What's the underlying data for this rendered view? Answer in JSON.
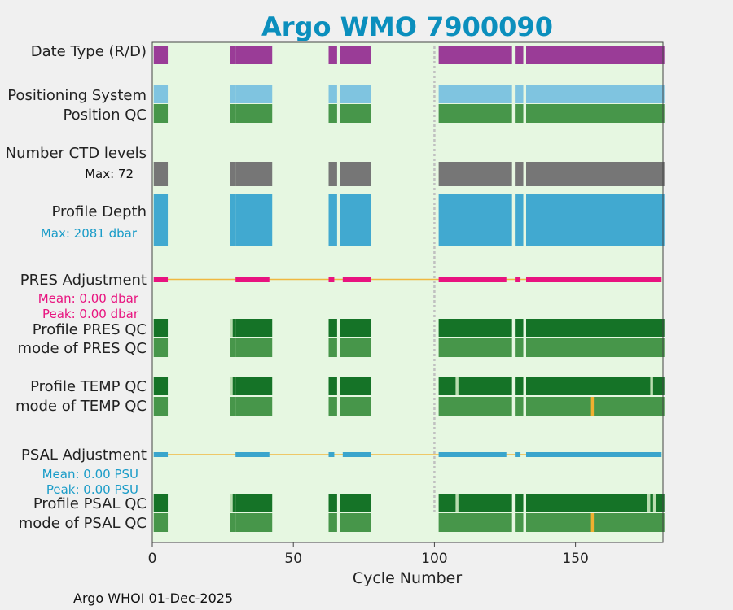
{
  "chart_data": {
    "type": "heatmap",
    "title": "Argo WMO 7900090",
    "xlabel": "Cycle Number",
    "xlim": [
      0,
      181
    ],
    "xticks": [
      0,
      50,
      100,
      150
    ],
    "vline_cycle": 100,
    "footer": "Argo WHOI 01-Dec-2025",
    "colors": {
      "background": "#e6f7e1",
      "datetype": "#9a3c97",
      "positioning": "#7fc4e0",
      "position_qc": "#47964a",
      "ctd": "#767676",
      "depth": "#41a9d0",
      "pres_adj": "#e8137f",
      "psal_adj": "#3aa5cc",
      "adj_line": "#f0b840",
      "qc_dark": "#157327",
      "qc_light": "#47964a",
      "qc_pale": "#b9ddb0",
      "qc_orange": "#f0b030",
      "title": "#0b8fbd",
      "pres_text": "#e8137f",
      "psal_text": "#1a9cc8"
    },
    "labels": {
      "datetype": "Date Type (R/D)",
      "positioning": "Positioning System",
      "position_qc": "Position QC",
      "ctd": "Number CTD levels",
      "ctd_max": "Max: 72",
      "depth": "Profile Depth",
      "depth_max": "Max: 2081 dbar",
      "pres_adj": "PRES Adjustment",
      "pres_mean": "Mean: 0.00 dbar",
      "pres_peak": "Peak: 0.00 dbar",
      "pres_qc": "Profile PRES QC",
      "pres_mode": "mode of PRES QC",
      "temp_qc": "Profile TEMP QC",
      "temp_mode": "mode of TEMP QC",
      "psal_adj": "PSAL Adjustment",
      "psal_mean": "Mean: 0.00 PSU",
      "psal_peak": "Peak: 0.00 PSU",
      "psal_qc": "Profile PSAL QC",
      "psal_mode": "mode of PSAL QC"
    },
    "cycle_ranges": [
      [
        1,
        5
      ],
      [
        28,
        29
      ],
      [
        30,
        42
      ],
      [
        63,
        65
      ],
      [
        67,
        77
      ],
      [
        102,
        127
      ],
      [
        129,
        131
      ],
      [
        133,
        181
      ]
    ],
    "ctd_cycles": [
      [
        1,
        5
      ],
      [
        28,
        29
      ],
      [
        30,
        42
      ],
      [
        63,
        65
      ],
      [
        67,
        77
      ],
      [
        102,
        127
      ],
      [
        129,
        131
      ],
      [
        133,
        181
      ]
    ],
    "pres_adjustment_segments": [
      [
        1,
        5
      ],
      [
        30,
        41
      ],
      [
        63,
        64
      ],
      [
        68,
        77
      ],
      [
        102,
        125
      ],
      [
        129,
        130
      ],
      [
        133,
        180
      ]
    ],
    "psal_adjustment_segments": [
      [
        1,
        5
      ],
      [
        30,
        41
      ],
      [
        63,
        64
      ],
      [
        68,
        77
      ],
      [
        102,
        125
      ],
      [
        129,
        130
      ],
      [
        133,
        180
      ]
    ],
    "pale_qc_cycles": {
      "pres": [
        28
      ],
      "temp": [
        28,
        108,
        177
      ],
      "psal": [
        28,
        108,
        176,
        178
      ]
    },
    "mode_flag_cycles": {
      "temp": [
        156
      ],
      "psal": [
        156
      ]
    }
  }
}
